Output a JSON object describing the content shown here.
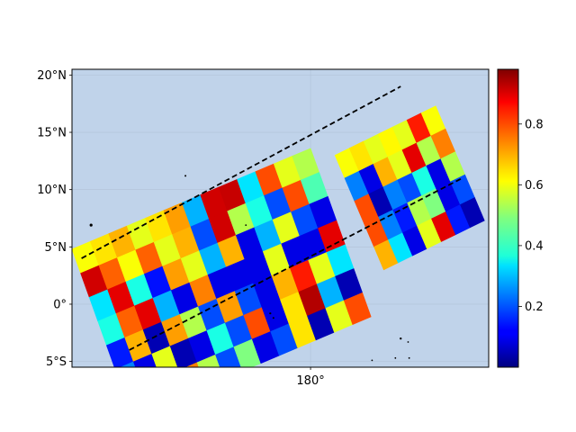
{
  "map": {
    "projection": "plate-carree",
    "ocean_color": "#c0d3ea",
    "grid_color": "#a9b7cc",
    "extent": {
      "lon_min": 157.5,
      "lon_max": 196.8,
      "lat_min": -5.5,
      "lat_max": 20.5
    },
    "lat_ticks": [
      {
        "value": 20,
        "label": "20°N"
      },
      {
        "value": 15,
        "label": "15°N"
      },
      {
        "value": 10,
        "label": "10°N"
      },
      {
        "value": 5,
        "label": "5°N"
      },
      {
        "value": 0,
        "label": "0°"
      },
      {
        "value": -5,
        "label": "5°S"
      }
    ],
    "lon_ticks": [
      {
        "value": 180,
        "label": "180°"
      }
    ],
    "islands": [
      {
        "lon": 159.3,
        "lat": 6.9,
        "r": 1.6
      },
      {
        "lon": 168.2,
        "lat": 11.2,
        "r": 1.0
      },
      {
        "lon": 173.9,
        "lat": 6.9,
        "r": 0.9
      },
      {
        "lon": 176.2,
        "lat": -0.8,
        "r": 1.1
      },
      {
        "lon": 176.5,
        "lat": -1.2,
        "r": 1.0
      },
      {
        "lon": 188.5,
        "lat": -3.0,
        "r": 1.2
      },
      {
        "lon": 189.2,
        "lat": -3.3,
        "r": 0.9
      },
      {
        "lon": 188.0,
        "lat": -4.7,
        "r": 0.9
      },
      {
        "lon": 189.3,
        "lat": -4.7,
        "r": 0.9
      },
      {
        "lon": 185.8,
        "lat": -4.9,
        "r": 0.9
      }
    ]
  },
  "swaths": [
    {
      "corners": {
        "lon0": 157.5,
        "lat0": 4.8,
        "u_dlon": 22.5,
        "u_dlat": 8.8,
        "v_dlon": 5.7,
        "v_dlat": -14.7
      },
      "grid": [
        [
          0.62,
          0.65,
          0.7,
          0.6,
          0.65,
          0.72,
          0.3,
          0.92,
          0.93,
          0.35,
          0.8,
          0.6,
          0.55
        ],
        [
          0.92,
          0.78,
          0.62,
          0.78,
          0.6,
          0.7,
          0.2,
          0.92,
          0.55,
          0.4,
          0.2,
          0.8,
          0.45
        ],
        [
          0.35,
          0.9,
          0.4,
          0.14,
          0.72,
          0.6,
          0.3,
          0.7,
          0.1,
          0.3,
          0.6,
          0.2,
          0.1
        ],
        [
          0.4,
          0.78,
          0.9,
          0.3,
          0.1,
          0.75,
          0.1,
          0.1,
          0.1,
          0.6,
          0.1,
          0.1,
          0.9
        ],
        [
          0.15,
          0.7,
          0.05,
          0.72,
          0.55,
          0.2,
          0.72,
          0.2,
          0.1,
          0.7,
          0.85,
          0.6,
          0.35
        ],
        [
          0.25,
          0.1,
          0.6,
          0.05,
          0.1,
          0.4,
          0.2,
          0.8,
          0.1,
          0.65,
          0.95,
          0.3,
          0.05
        ],
        [
          0.35,
          0.4,
          0.05,
          0.75,
          0.55,
          0.2,
          0.5,
          0.1,
          0.2,
          0.65,
          0.05,
          0.6,
          0.8
        ]
      ]
    },
    {
      "corners": {
        "lon0": 182.3,
        "lat0": 13.0,
        "u_dlon": 9.5,
        "u_dlat": 4.3,
        "v_dlon": 4.6,
        "v_dlat": -10.0
      },
      "grid": [
        [
          0.62,
          0.65,
          0.6,
          0.63,
          0.6,
          0.85,
          0.62
        ],
        [
          0.25,
          0.1,
          0.7,
          0.6,
          0.9,
          0.55,
          0.75
        ],
        [
          0.8,
          0.05,
          0.25,
          0.2,
          0.4,
          0.1,
          0.55
        ],
        [
          0.8,
          0.25,
          0.15,
          0.55,
          0.5,
          0.1,
          0.2
        ],
        [
          0.7,
          0.35,
          0.1,
          0.6,
          0.9,
          0.15,
          0.05
        ]
      ]
    }
  ],
  "track_lines": [
    {
      "points": [
        [
          158.4,
          4.0
        ],
        [
          188.5,
          19.0
        ]
      ]
    },
    {
      "points": [
        [
          162.9,
          -4.0
        ],
        [
          194.3,
          11.0
        ]
      ]
    }
  ],
  "colorbar": {
    "colormap": "jet",
    "min": 0.0,
    "max": 0.98,
    "ticks": [
      {
        "value": 0.2,
        "label": "0.2"
      },
      {
        "value": 0.4,
        "label": "0.4"
      },
      {
        "value": 0.6,
        "label": "0.6"
      },
      {
        "value": 0.8,
        "label": "0.8"
      }
    ]
  }
}
